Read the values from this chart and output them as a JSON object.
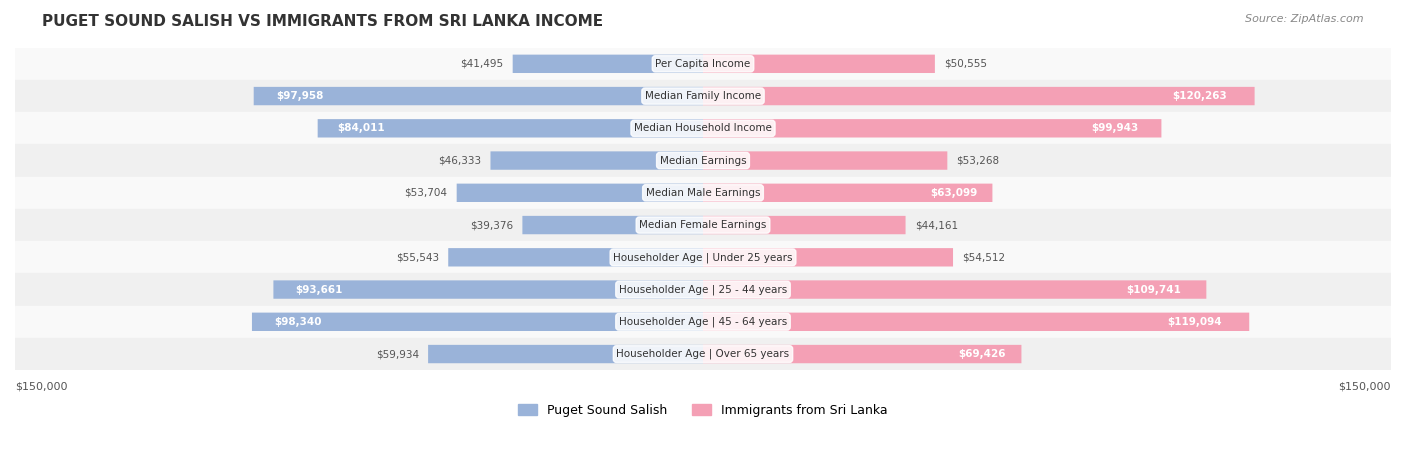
{
  "title": "PUGET SOUND SALISH VS IMMIGRANTS FROM SRI LANKA INCOME",
  "source": "Source: ZipAtlas.com",
  "categories": [
    "Per Capita Income",
    "Median Family Income",
    "Median Household Income",
    "Median Earnings",
    "Median Male Earnings",
    "Median Female Earnings",
    "Householder Age | Under 25 years",
    "Householder Age | 25 - 44 years",
    "Householder Age | 45 - 64 years",
    "Householder Age | Over 65 years"
  ],
  "left_values": [
    41495,
    97958,
    84011,
    46333,
    53704,
    39376,
    55543,
    93661,
    98340,
    59934
  ],
  "right_values": [
    50555,
    120263,
    99943,
    53268,
    63099,
    44161,
    54512,
    109741,
    119094,
    69426
  ],
  "left_labels": [
    "$41,495",
    "$97,958",
    "$84,011",
    "$46,333",
    "$53,704",
    "$39,376",
    "$55,543",
    "$93,661",
    "$98,340",
    "$59,934"
  ],
  "right_labels": [
    "$50,555",
    "$120,263",
    "$99,943",
    "$53,268",
    "$63,099",
    "$44,161",
    "$54,512",
    "$109,741",
    "$119,094",
    "$69,426"
  ],
  "max_value": 150000,
  "left_color": "#9ab3d9",
  "right_color": "#f4a0b5",
  "left_color_dark": "#6b97c9",
  "right_color_dark": "#f07090",
  "left_legend": "Puget Sound Salish",
  "right_legend": "Immigrants from Sri Lanka",
  "label_threshold": 60000,
  "background_color": "#f5f5f5",
  "bar_background": "#e8e8e8",
  "row_bg_light": "#f9f9f9",
  "row_bg_dark": "#f0f0f0"
}
